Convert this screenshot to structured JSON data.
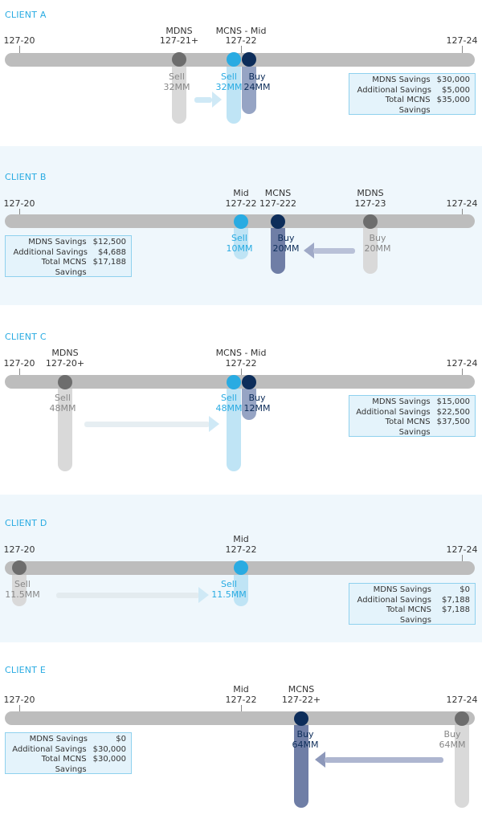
{
  "colors": {
    "accent": "#29abe2",
    "mid_dot": "#29abe2",
    "mcns_dot": "#0d2d5a",
    "mdns_dot": "#6d6d6d",
    "axis": "#bdbdbd"
  },
  "box_labels": {
    "mdns": "MDNS Savings",
    "additional": "Additional Savings",
    "total": "Total MCNS Savings"
  },
  "clients": [
    {
      "title": "CLIENT A",
      "left_label": "127-20",
      "right_label": "127-24",
      "points": [
        {
          "name": "MDNS",
          "price": "127-21+",
          "trade": "Sell",
          "size": "32MM"
        },
        {
          "name": "MCNS - Mid",
          "price": "127-22",
          "trade_mid": "Sell",
          "size_mid": "32MM",
          "trade_mcns": "Buy",
          "size_mcns": "24MM"
        }
      ],
      "savings": {
        "mdns": "$30,000",
        "additional": "$5,000",
        "total": "$35,000"
      }
    },
    {
      "title": "CLIENT B",
      "left_label": "127-20",
      "right_label": "127-24",
      "points": [
        {
          "name": "Mid",
          "price": "127-22",
          "trade": "Sell",
          "size": "10MM"
        },
        {
          "name": "MCNS",
          "price": "127-222",
          "trade": "Buy",
          "size": "20MM"
        },
        {
          "name": "MDNS",
          "price": "127-23",
          "trade": "Buy",
          "size": "20MM"
        }
      ],
      "savings": {
        "mdns": "$12,500",
        "additional": "$4,688",
        "total": "$17,188"
      }
    },
    {
      "title": "CLIENT C",
      "left_label": "127-20",
      "right_label": "127-24",
      "points": [
        {
          "name": "MDNS",
          "price": "127-20+",
          "trade": "Sell",
          "size": "48MM"
        },
        {
          "name": "MCNS - Mid",
          "price": "127-22",
          "trade_mid": "Sell",
          "size_mid": "48MM",
          "trade_mcns": "Buy",
          "size_mcns": "12MM"
        }
      ],
      "savings": {
        "mdns": "$15,000",
        "additional": "$22,500",
        "total": "$37,500"
      }
    },
    {
      "title": "CLIENT D",
      "left_label": "127-20",
      "right_label": "127-24",
      "points": [
        {
          "trade": "Sell",
          "size": "11.5MM"
        },
        {
          "name": "Mid",
          "price": "127-22",
          "trade": "Sell",
          "size": "11.5MM"
        }
      ],
      "savings": {
        "mdns": "$0",
        "additional": "$7,188",
        "total": "$7,188"
      }
    },
    {
      "title": "CLIENT E",
      "left_label": "127-20",
      "right_label": "127-24",
      "points": [
        {
          "name": "Mid",
          "price": "127-22"
        },
        {
          "name": "MCNS",
          "price": "127-22+",
          "trade": "Buy",
          "size": "64MM"
        },
        {
          "trade": "Buy",
          "size": "64MM"
        }
      ],
      "savings": {
        "mdns": "$0",
        "additional": "$30,000",
        "total": "$30,000"
      }
    }
  ]
}
